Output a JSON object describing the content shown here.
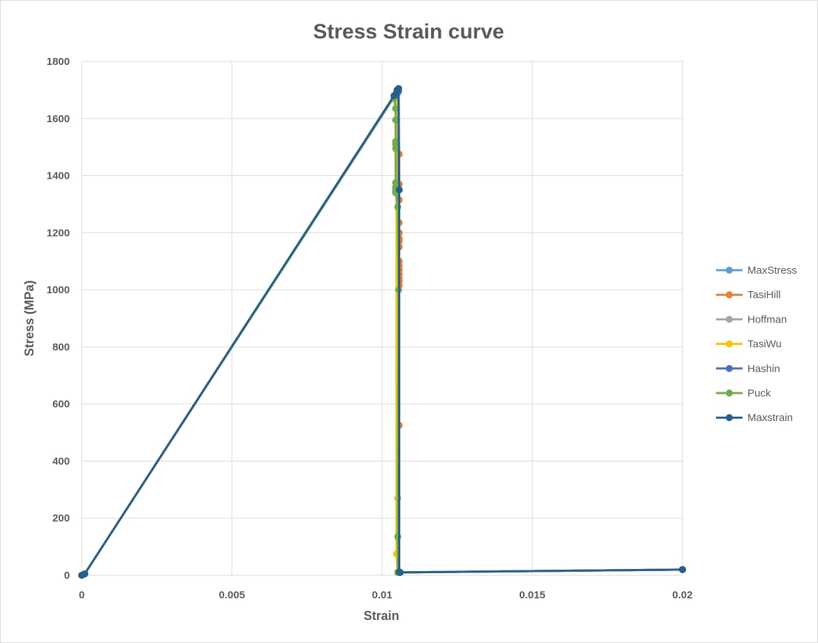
{
  "chart_data": {
    "type": "line",
    "title": "Stress Strain curve",
    "xlabel": "Strain",
    "ylabel": "Stress (MPa)",
    "xlim": [
      0,
      0.02
    ],
    "ylim": [
      0,
      1800
    ],
    "xticks": [
      0,
      0.005,
      0.01,
      0.015,
      0.02
    ],
    "xtick_labels": [
      "0",
      "0.005",
      "0.01",
      "0.015",
      "0.02"
    ],
    "yticks": [
      0,
      200,
      400,
      600,
      800,
      1000,
      1200,
      1400,
      1600,
      1800
    ],
    "ytick_labels": [
      "0",
      "200",
      "400",
      "600",
      "800",
      "1000",
      "1200",
      "1400",
      "1600",
      "1800"
    ],
    "grid": true,
    "legend_position": "right",
    "series": [
      {
        "name": "MaxStress",
        "color": "#5B9BD5",
        "points": [
          [
            0,
            0
          ],
          [
            0.0001,
            5
          ],
          [
            0.0104,
            1680
          ],
          [
            0.0105,
            1700
          ],
          [
            0.01052,
            1695
          ],
          [
            0.01055,
            10
          ],
          [
            0.0106,
            10
          ],
          [
            0.02,
            20
          ]
        ]
      },
      {
        "name": "TasiHill",
        "color": "#ED7D31",
        "points": [
          [
            0,
            0
          ],
          [
            0.0001,
            5
          ],
          [
            0.0104,
            1680
          ],
          [
            0.0105,
            1700
          ],
          [
            0.01057,
            1475
          ],
          [
            0.01057,
            1370
          ],
          [
            0.01057,
            1350
          ],
          [
            0.01057,
            1315
          ],
          [
            0.01057,
            1235
          ],
          [
            0.01057,
            1200
          ],
          [
            0.01057,
            1180
          ],
          [
            0.01057,
            1170
          ],
          [
            0.01057,
            1150
          ],
          [
            0.01057,
            1100
          ],
          [
            0.01057,
            1085
          ],
          [
            0.01057,
            1070
          ],
          [
            0.01057,
            1055
          ],
          [
            0.01057,
            1040
          ],
          [
            0.01057,
            1030
          ],
          [
            0.01057,
            1015
          ],
          [
            0.01057,
            525
          ],
          [
            0.01057,
            10
          ],
          [
            0.0106,
            10
          ],
          [
            0.02,
            20
          ]
        ]
      },
      {
        "name": "Hoffman",
        "color": "#A5A5A5",
        "points": [
          [
            0,
            0
          ],
          [
            0.0001,
            5
          ],
          [
            0.0104,
            1680
          ],
          [
            0.0105,
            1700
          ],
          [
            0.01052,
            1690
          ],
          [
            0.01052,
            270
          ],
          [
            0.01055,
            10
          ],
          [
            0.0106,
            10
          ],
          [
            0.02,
            20
          ]
        ]
      },
      {
        "name": "TasiWu",
        "color": "#FFC000",
        "points": [
          [
            0,
            0
          ],
          [
            0.0001,
            5
          ],
          [
            0.0104,
            1680
          ],
          [
            0.0105,
            1700
          ],
          [
            0.01048,
            1690
          ],
          [
            0.01048,
            75
          ],
          [
            0.01052,
            10
          ],
          [
            0.0106,
            10
          ],
          [
            0.02,
            20
          ]
        ]
      },
      {
        "name": "Hashin",
        "color": "#4472C4",
        "points": [
          [
            0,
            0
          ],
          [
            0.0001,
            5
          ],
          [
            0.0104,
            1680
          ],
          [
            0.0105,
            1700
          ],
          [
            0.01055,
            1695
          ],
          [
            0.01055,
            10
          ],
          [
            0.0106,
            10
          ],
          [
            0.02,
            20
          ]
        ]
      },
      {
        "name": "Puck",
        "color": "#70AD47",
        "points": [
          [
            0,
            0
          ],
          [
            0.0001,
            5
          ],
          [
            0.0104,
            1675
          ],
          [
            0.0104,
            1670
          ],
          [
            0.01045,
            1635
          ],
          [
            0.01045,
            1595
          ],
          [
            0.01045,
            1520
          ],
          [
            0.01045,
            1510
          ],
          [
            0.01045,
            1495
          ],
          [
            0.01045,
            1375
          ],
          [
            0.01045,
            1360
          ],
          [
            0.01045,
            1350
          ],
          [
            0.01045,
            1345
          ],
          [
            0.01045,
            1340
          ],
          [
            0.01052,
            1290
          ],
          [
            0.01055,
            1000
          ],
          [
            0.01052,
            135
          ],
          [
            0.01052,
            10
          ],
          [
            0.0106,
            10
          ],
          [
            0.02,
            20
          ]
        ]
      },
      {
        "name": "Maxstrain",
        "color": "#255E91",
        "points": [
          [
            0,
            0
          ],
          [
            0.0001,
            5
          ],
          [
            0.0104,
            1680
          ],
          [
            0.01048,
            1690
          ],
          [
            0.0105,
            1700
          ],
          [
            0.01055,
            1705
          ],
          [
            0.01057,
            1350
          ],
          [
            0.01057,
            12
          ],
          [
            0.0106,
            10
          ],
          [
            0.02,
            20
          ]
        ]
      }
    ]
  }
}
